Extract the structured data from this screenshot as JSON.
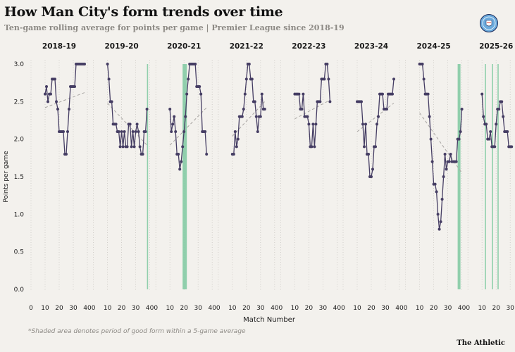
{
  "title": "How Man City's form trends over time",
  "subtitle": "Ten-game rolling average for points per game | Premier League since 2018-19",
  "badge_icon": "man-city-crest-icon",
  "footnote": "*Shaded area denotes period of good form within a 5-game average",
  "brand": "The Athletic",
  "colors": {
    "line": "#453d63",
    "trend": "#a9a6a3",
    "shade": "#7ec9a0",
    "grid": "#c9c6c1",
    "text": "#1a1a1a"
  },
  "chart_data": {
    "type": "line",
    "xlabel": "Match Number",
    "ylabel": "Points per game",
    "ylim": [
      0,
      3
    ],
    "yticks": [
      0.0,
      0.5,
      1.0,
      1.5,
      2.0,
      2.5,
      3.0
    ],
    "xlim": [
      0,
      40
    ],
    "xticks": [
      0,
      10,
      20,
      30,
      40
    ],
    "panels": [
      {
        "season": "2018-19",
        "x_start": 10,
        "values": [
          2.6,
          2.7,
          2.5,
          2.6,
          2.6,
          2.8,
          2.8,
          2.8,
          2.5,
          2.4,
          2.1,
          2.1,
          2.1,
          2.1,
          1.8,
          1.8,
          2.1,
          2.4,
          2.7,
          2.7,
          2.7,
          2.7,
          3.0,
          3.0,
          3.0,
          3.0,
          3.0,
          3.0,
          3.0
        ],
        "trend": [
          2.42,
          2.62
        ],
        "shade": []
      },
      {
        "season": "2019-20",
        "x_start": 10,
        "values": [
          3.0,
          2.8,
          2.5,
          2.5,
          2.2,
          2.2,
          2.2,
          2.1,
          2.1,
          1.9,
          2.1,
          1.9,
          2.1,
          1.9,
          1.9,
          2.2,
          2.2,
          1.9,
          2.1,
          1.9,
          2.1,
          2.2,
          2.1,
          1.9,
          1.8,
          1.8,
          2.1,
          2.1,
          2.4
        ],
        "trend": [
          2.48,
          1.92
        ],
        "shade": [
          [
            38,
            38.3
          ]
        ]
      },
      {
        "season": "2020-21",
        "x_start": 10,
        "values": [
          2.4,
          2.1,
          2.2,
          2.3,
          2.1,
          1.8,
          1.8,
          1.6,
          1.7,
          1.9,
          2.1,
          2.3,
          2.6,
          2.8,
          3.0,
          3.0,
          3.0,
          3.0,
          3.0,
          2.7,
          2.7,
          2.7,
          2.6,
          2.1,
          2.1,
          2.1,
          1.8
        ],
        "trend": [
          1.92,
          2.42
        ],
        "shade": [
          [
            19,
            22
          ]
        ]
      },
      {
        "season": "2021-22",
        "x_start": 10,
        "values": [
          1.8,
          1.8,
          2.1,
          1.9,
          2.0,
          2.3,
          2.3,
          2.3,
          2.4,
          2.6,
          2.8,
          3.0,
          3.0,
          2.8,
          2.8,
          2.5,
          2.5,
          2.3,
          2.1,
          2.3,
          2.3,
          2.6,
          2.4,
          2.4
        ],
        "trend": [
          2.04,
          2.5
        ],
        "shade": []
      },
      {
        "season": "2022-23",
        "x_start": 10,
        "values": [
          2.6,
          2.6,
          2.6,
          2.6,
          2.4,
          2.4,
          2.6,
          2.3,
          2.3,
          2.3,
          2.2,
          1.9,
          1.9,
          2.2,
          1.9,
          2.2,
          2.5,
          2.5,
          2.5,
          2.8,
          2.8,
          2.8,
          3.0,
          3.0,
          2.8,
          2.5
        ],
        "trend": [
          2.27,
          2.52
        ],
        "shade": []
      },
      {
        "season": "2023-24",
        "x_start": 10,
        "values": [
          2.5,
          2.5,
          2.5,
          2.5,
          2.2,
          1.9,
          2.2,
          1.8,
          1.8,
          1.5,
          1.5,
          1.6,
          1.9,
          1.9,
          2.2,
          2.3,
          2.6,
          2.6,
          2.6,
          2.4,
          2.4,
          2.4,
          2.6,
          2.6,
          2.6,
          2.6,
          2.8
        ],
        "trend": [
          2.1,
          2.48
        ],
        "shade": []
      },
      {
        "season": "2024-25",
        "x_start": 10,
        "values": [
          3.0,
          3.0,
          3.0,
          2.8,
          2.6,
          2.6,
          2.6,
          2.3,
          2.0,
          1.7,
          1.4,
          1.4,
          1.3,
          1.0,
          0.8,
          0.9,
          1.2,
          1.5,
          1.8,
          1.6,
          1.7,
          1.7,
          1.8,
          1.7,
          1.7,
          1.7,
          1.7,
          2.0,
          2.0,
          2.1,
          2.4
        ],
        "trend": [
          2.35,
          1.55
        ],
        "shade": [
          [
            37,
            39
          ]
        ]
      },
      {
        "season": "2025-26",
        "x_start": 10,
        "values": [
          2.6,
          2.3,
          2.2,
          2.2,
          2.0,
          2.0,
          2.1,
          1.9,
          1.9,
          1.9,
          2.2,
          2.4,
          2.4,
          2.5,
          2.5,
          2.3,
          2.1,
          2.1,
          2.1,
          1.9,
          1.9,
          1.9
        ],
        "trend": [],
        "shade": [
          [
            12,
            12.6
          ],
          [
            17,
            17.6
          ],
          [
            21,
            21.6
          ]
        ]
      }
    ]
  }
}
